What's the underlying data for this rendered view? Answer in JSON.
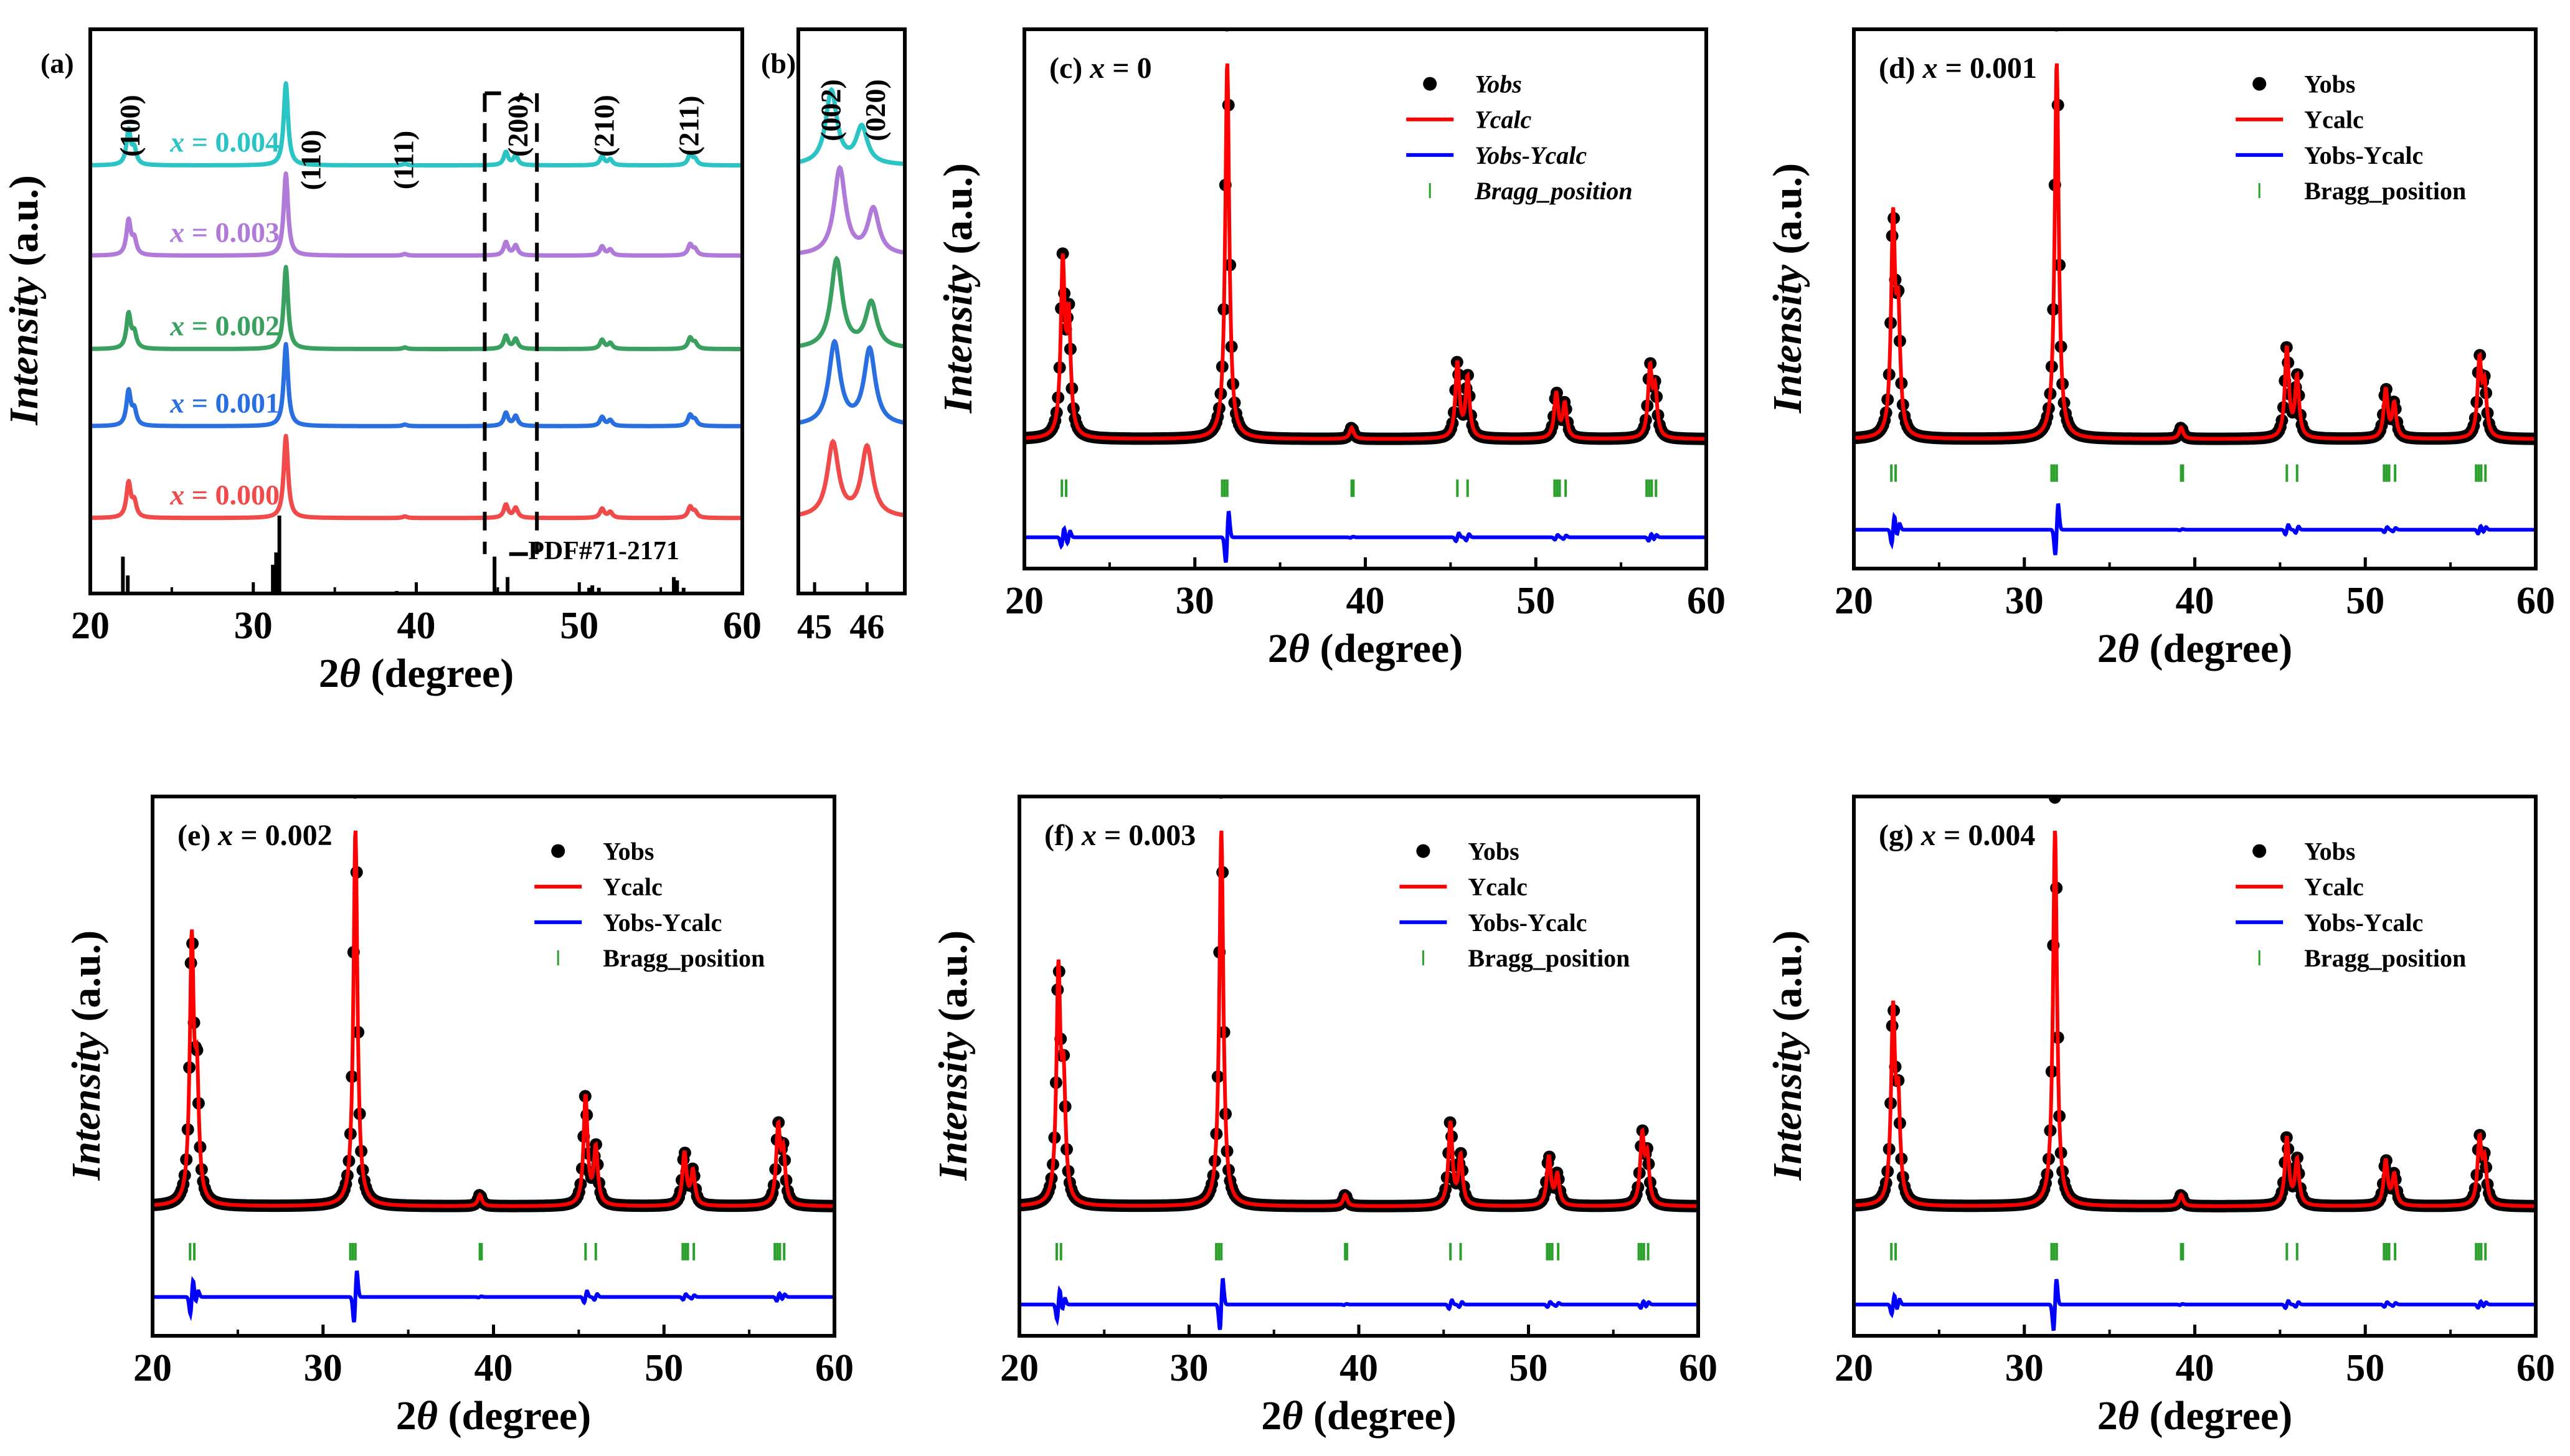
{
  "colors": {
    "frame": "#000000",
    "yobs": "#000000",
    "ycalc": "#ff0000",
    "diff": "#0000ff",
    "bragg": "#2ca02c",
    "ref": "#000000"
  },
  "chart_data": [
    {
      "panel": "a",
      "type": "line",
      "label": "(a)",
      "xlabel": {
        "pre": "2",
        "var": "θ",
        "post": " (degree)"
      },
      "ylabel": {
        "var": "Intensity",
        "post": " (a.u.)"
      },
      "xlim": [
        20,
        60
      ],
      "ylim": [
        0,
        6.88
      ],
      "xticks": [
        "20",
        "30",
        "40",
        "50",
        "60"
      ],
      "xtick_values": [
        20,
        30,
        40,
        50,
        60
      ],
      "peak_width": 0.16,
      "peaks": [
        [
          22.35,
          0.42
        ],
        [
          22.7,
          0.18
        ],
        [
          32.0,
          1.0
        ],
        [
          39.3,
          0.02
        ],
        [
          45.5,
          0.16
        ],
        [
          46.1,
          0.12
        ],
        [
          51.4,
          0.11
        ],
        [
          51.9,
          0.07
        ],
        [
          56.8,
          0.13
        ],
        [
          57.1,
          0.07
        ]
      ],
      "series": [
        {
          "name_var": "x",
          "name_val": " = 0.000",
          "color": "#f04a4a",
          "offset": 0.92
        },
        {
          "name_var": "x",
          "name_val": " = 0.001",
          "color": "#2a6fe0",
          "offset": 2.04
        },
        {
          "name_var": "x",
          "name_val": " = 0.002",
          "color": "#3aa060",
          "offset": 2.98
        },
        {
          "name_var": "x",
          "name_val": " = 0.003",
          "color": "#b07ad8",
          "offset": 4.12
        },
        {
          "name_var": "x",
          "name_val": " = 0.004",
          "color": "#2ac4c4",
          "offset": 5.22
        }
      ],
      "hkl": [
        {
          "text": "(100)",
          "x": 22.4
        },
        {
          "text": "(110)",
          "x": 33.5
        },
        {
          "text": "(111)",
          "x": 39.2
        },
        {
          "text": "(200)",
          "x": 46.2
        },
        {
          "text": "(210)",
          "x": 51.5
        },
        {
          "text": "(211)",
          "x": 56.7
        }
      ],
      "reference": {
        "label": "PDF#71-2171",
        "sticks": [
          [
            22.0,
            0.45
          ],
          [
            22.3,
            0.22
          ],
          [
            31.2,
            0.35
          ],
          [
            31.4,
            0.5
          ],
          [
            31.6,
            0.95
          ],
          [
            38.8,
            0.03
          ],
          [
            44.8,
            0.45
          ],
          [
            45.6,
            0.2
          ],
          [
            50.6,
            0.07
          ],
          [
            50.8,
            0.1
          ],
          [
            51.2,
            0.07
          ],
          [
            55.8,
            0.2
          ],
          [
            56.0,
            0.16
          ],
          [
            56.4,
            0.07
          ]
        ]
      },
      "zoom_region": [
        44.2,
        47.4
      ]
    },
    {
      "panel": "b",
      "type": "line",
      "label": "(b)",
      "xlim": [
        44.69,
        46.72
      ],
      "ylim": [
        0,
        6.88
      ],
      "xticks": [
        "45",
        "46"
      ],
      "xtick_values": [
        45,
        46
      ],
      "peak_width": 0.13,
      "hkl": [
        {
          "text": "(002)",
          "x": 45.3
        },
        {
          "text": "(020)",
          "x": 46.15
        }
      ],
      "series": [
        {
          "color": "#f04a4a",
          "offset": 0.92,
          "peaks": [
            [
              45.35,
              0.9
            ],
            [
              46.0,
              0.85
            ]
          ]
        },
        {
          "color": "#2a6fe0",
          "offset": 2.04,
          "peaks": [
            [
              45.38,
              1.0
            ],
            [
              46.05,
              0.92
            ]
          ]
        },
        {
          "color": "#3aa060",
          "offset": 2.98,
          "peaks": [
            [
              45.42,
              1.08
            ],
            [
              46.08,
              0.55
            ]
          ]
        },
        {
          "color": "#b07ad8",
          "offset": 4.12,
          "peaks": [
            [
              45.48,
              1.05
            ],
            [
              46.12,
              0.55
            ]
          ]
        },
        {
          "color": "#2ac4c4",
          "offset": 5.22,
          "peaks": [
            [
              45.32,
              0.9
            ],
            [
              45.9,
              0.45
            ]
          ]
        }
      ]
    },
    {
      "panel": "c",
      "type": "scatter",
      "label_pre": "(c) ",
      "label_var": "x",
      "label_val": " = 0",
      "xlim": [
        20,
        60
      ],
      "ylim": [
        -0.343,
        1.086
      ],
      "xticks": [
        "20",
        "30",
        "40",
        "50",
        "60"
      ],
      "xtick_values": [
        20,
        30,
        40,
        50,
        60
      ],
      "xlabel": {
        "pre": "2",
        "var": "θ",
        "post": " (degree)"
      },
      "ylabel": {
        "var": "Intensity",
        "post": " (a.u.)"
      },
      "legend": [
        "Yobs",
        "Ycalc",
        "Yobs-Ycalc",
        "Bragg_position"
      ],
      "legend_italic": true,
      "peaks": [
        [
          22.25,
          0.45
        ],
        [
          22.6,
          0.3
        ],
        [
          31.9,
          1.0
        ],
        [
          39.2,
          0.03
        ],
        [
          45.4,
          0.2
        ],
        [
          46.0,
          0.16
        ],
        [
          51.2,
          0.12
        ],
        [
          51.7,
          0.09
        ],
        [
          56.7,
          0.18
        ],
        [
          57.0,
          0.12
        ]
      ],
      "bragg_y": -0.13,
      "diff_offset": -0.26
    },
    {
      "panel": "d",
      "type": "scatter",
      "label_pre": "(d) ",
      "label_var": "x",
      "label_val": " = 0.001",
      "xlim": [
        20,
        60
      ],
      "ylim": [
        -0.343,
        1.086
      ],
      "xticks": [
        "20",
        "30",
        "40",
        "50",
        "60"
      ],
      "xtick_values": [
        20,
        30,
        40,
        50,
        60
      ],
      "xlabel": {
        "pre": "2",
        "var": "θ",
        "post": " (degree)"
      },
      "ylabel": {
        "var": "Intensity",
        "post": " (a.u.)"
      },
      "legend": [
        "Yobs",
        "Ycalc",
        "Yobs-Ycalc",
        "Bragg_position"
      ],
      "legend_italic": false,
      "peaks": [
        [
          22.3,
          0.56
        ],
        [
          22.6,
          0.3
        ],
        [
          31.9,
          1.0
        ],
        [
          39.2,
          0.03
        ],
        [
          45.4,
          0.24
        ],
        [
          46.0,
          0.16
        ],
        [
          51.2,
          0.13
        ],
        [
          51.7,
          0.09
        ],
        [
          56.7,
          0.2
        ],
        [
          57.0,
          0.13
        ]
      ],
      "bragg_y": -0.09,
      "diff_offset": -0.24
    },
    {
      "panel": "e",
      "type": "scatter",
      "label_pre": "(e) ",
      "label_var": "x",
      "label_val": " = 0.002",
      "xlim": [
        20,
        60
      ],
      "ylim": [
        -0.343,
        1.086
      ],
      "xticks": [
        "20",
        "30",
        "40",
        "50",
        "60"
      ],
      "xtick_values": [
        20,
        30,
        40,
        50,
        60
      ],
      "xlabel": {
        "pre": "2",
        "var": "θ",
        "post": " (degree)"
      },
      "ylabel": {
        "var": "Intensity",
        "post": " (a.u.)"
      },
      "legend": [
        "Yobs",
        "Ycalc",
        "Yobs-Ycalc",
        "Bragg_position"
      ],
      "legend_italic": false,
      "peaks": [
        [
          22.3,
          0.68
        ],
        [
          22.6,
          0.3
        ],
        [
          31.9,
          1.0
        ],
        [
          39.2,
          0.03
        ],
        [
          45.4,
          0.29
        ],
        [
          46.0,
          0.15
        ],
        [
          51.2,
          0.14
        ],
        [
          51.7,
          0.09
        ],
        [
          56.7,
          0.2
        ],
        [
          57.0,
          0.13
        ]
      ],
      "bragg_y": -0.12,
      "diff_offset": -0.24
    },
    {
      "panel": "f",
      "type": "scatter",
      "label_pre": "(f) ",
      "label_var": "x",
      "label_val": " = 0.003",
      "xlim": [
        20,
        60
      ],
      "ylim": [
        -0.343,
        1.086
      ],
      "xticks": [
        "20",
        "30",
        "40",
        "50",
        "60"
      ],
      "xtick_values": [
        20,
        30,
        40,
        50,
        60
      ],
      "xlabel": {
        "pre": "2",
        "var": "θ",
        "post": " (degree)"
      },
      "ylabel": {
        "var": "Intensity",
        "post": " (a.u.)"
      },
      "legend": [
        "Yobs",
        "Ycalc",
        "Yobs-Ycalc",
        "Bragg_position"
      ],
      "legend_italic": false,
      "peaks": [
        [
          22.3,
          0.6
        ],
        [
          22.6,
          0.3
        ],
        [
          31.9,
          1.0
        ],
        [
          39.2,
          0.03
        ],
        [
          45.4,
          0.22
        ],
        [
          46.0,
          0.13
        ],
        [
          51.2,
          0.13
        ],
        [
          51.7,
          0.08
        ],
        [
          56.7,
          0.18
        ],
        [
          57.0,
          0.12
        ]
      ],
      "bragg_y": -0.12,
      "diff_offset": -0.26
    },
    {
      "panel": "g",
      "type": "scatter",
      "label_pre": "(g) ",
      "label_var": "x",
      "label_val": " = 0.004",
      "xlim": [
        20,
        60
      ],
      "ylim": [
        -0.343,
        1.086
      ],
      "xticks": [
        "20",
        "30",
        "40",
        "50",
        "60"
      ],
      "xtick_values": [
        20,
        30,
        40,
        50,
        60
      ],
      "xlabel": {
        "pre": "2",
        "var": "θ",
        "post": " (degree)"
      },
      "ylabel": {
        "var": "Intensity",
        "post": " (a.u.)"
      },
      "legend": [
        "Yobs",
        "Ycalc",
        "Yobs-Ycalc",
        "Bragg_position"
      ],
      "legend_italic": false,
      "peaks": [
        [
          22.3,
          0.5
        ],
        [
          22.6,
          0.25
        ],
        [
          31.8,
          1.0
        ],
        [
          39.2,
          0.03
        ],
        [
          45.4,
          0.18
        ],
        [
          46.0,
          0.12
        ],
        [
          51.2,
          0.12
        ],
        [
          51.7,
          0.08
        ],
        [
          56.7,
          0.17
        ],
        [
          57.0,
          0.11
        ]
      ],
      "bragg_y": -0.12,
      "diff_offset": -0.26
    }
  ],
  "bragg_positions": [
    22.2,
    22.45,
    31.6,
    31.75,
    31.9,
    39.2,
    39.3,
    45.4,
    46.0,
    51.1,
    51.25,
    51.4,
    51.75,
    56.5,
    56.65,
    56.8,
    57.05
  ]
}
